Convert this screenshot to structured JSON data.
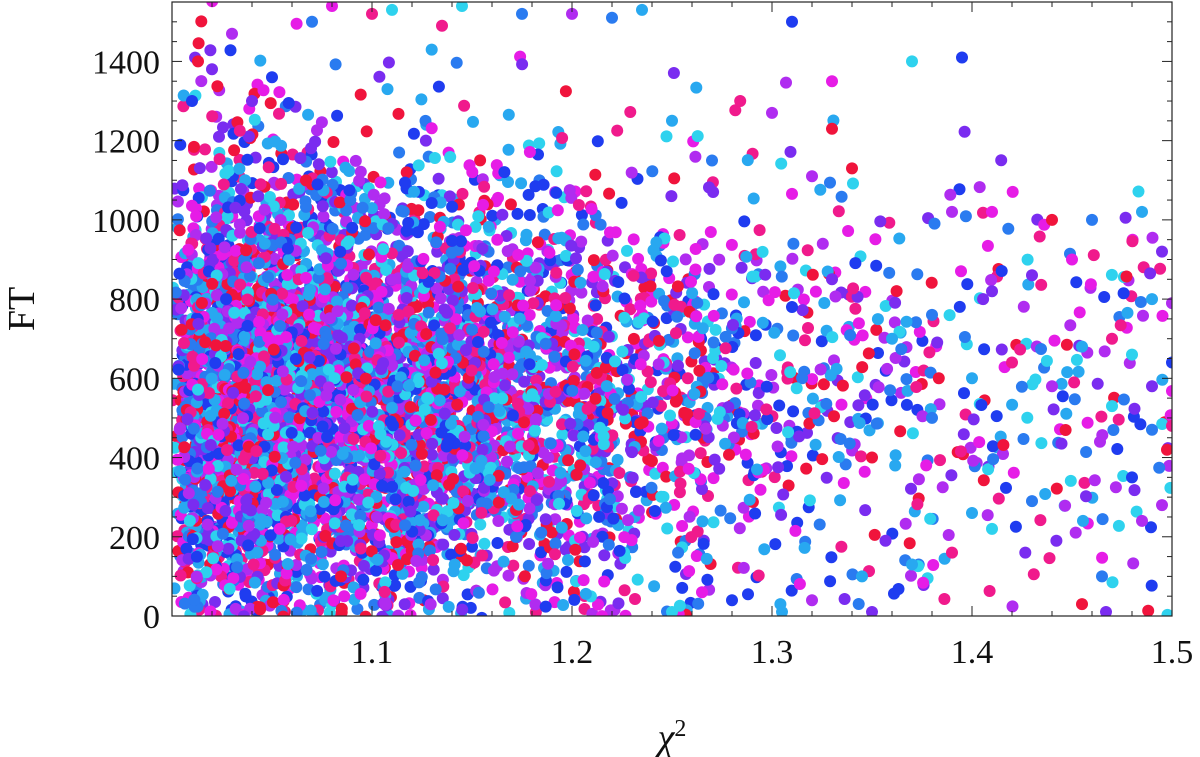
{
  "chart_data": {
    "type": "scatter",
    "xlabel": "χ",
    "xlabel_superscript": "2",
    "ylabel": "FT",
    "xlim": [
      1.0,
      1.5
    ],
    "ylim": [
      0,
      1550
    ],
    "xticks": [
      {
        "value": 1.1,
        "label": "1.1"
      },
      {
        "value": 1.2,
        "label": "1.2"
      },
      {
        "value": 1.3,
        "label": "1.3"
      },
      {
        "value": 1.4,
        "label": "1.4"
      },
      {
        "value": 1.5,
        "label": "1.5"
      }
    ],
    "yticks": [
      {
        "value": 0,
        "label": "0"
      },
      {
        "value": 200,
        "label": "200"
      },
      {
        "value": 400,
        "label": "400"
      },
      {
        "value": 600,
        "label": "600"
      },
      {
        "value": 800,
        "label": "800"
      },
      {
        "value": 1000,
        "label": "1000"
      },
      {
        "value": 1200,
        "label": "1200"
      },
      {
        "value": 1400,
        "label": "1400"
      }
    ],
    "grid": false,
    "legend": "none",
    "point_colors": [
      "#1f3cf0",
      "#2a7bf0",
      "#28a8f0",
      "#2ed2ee",
      "#7a2cf0",
      "#b02cf0",
      "#e61ce6",
      "#f01a8c",
      "#f0143c"
    ],
    "approx_point_count": 6000,
    "x_density_note": "dense near 1.0-1.25, thinning toward 1.5",
    "y_center": 550,
    "sample_points": [
      [
        1.01,
        1300
      ],
      [
        1.013,
        1400
      ],
      [
        1.02,
        1380
      ],
      [
        1.03,
        1470
      ],
      [
        1.04,
        1300
      ],
      [
        1.05,
        1360
      ],
      [
        1.07,
        1500
      ],
      [
        1.08,
        1540
      ],
      [
        1.1,
        1520
      ],
      [
        1.11,
        1530
      ],
      [
        1.135,
        1490
      ],
      [
        1.145,
        1540
      ],
      [
        1.175,
        1520
      ],
      [
        1.2,
        1520
      ],
      [
        1.22,
        1510
      ],
      [
        1.235,
        1530
      ],
      [
        1.31,
        1500
      ],
      [
        1.33,
        1350
      ],
      [
        1.37,
        1400
      ],
      [
        1.395,
        1410
      ],
      [
        1.3,
        1270
      ],
      [
        1.33,
        1230
      ],
      [
        1.25,
        1250
      ],
      [
        1.27,
        1150
      ],
      [
        1.32,
        1110
      ],
      [
        1.34,
        1130
      ],
      [
        1.39,
        1020
      ],
      [
        1.41,
        1020
      ],
      [
        1.44,
        1000
      ],
      [
        1.46,
        1000
      ],
      [
        1.485,
        1020
      ],
      [
        1.495,
        920
      ],
      [
        1.49,
        800
      ],
      [
        1.5,
        790
      ],
      [
        1.47,
        700
      ],
      [
        1.455,
        680
      ],
      [
        1.48,
        660
      ],
      [
        1.49,
        580
      ],
      [
        1.5,
        640
      ],
      [
        1.47,
        530
      ],
      [
        1.49,
        470
      ],
      [
        1.5,
        480
      ],
      [
        1.48,
        350
      ],
      [
        1.495,
        280
      ],
      [
        1.485,
        240
      ],
      [
        1.465,
        100
      ],
      [
        1.467,
        10
      ],
      [
        1.455,
        30
      ],
      [
        1.43,
        290
      ],
      [
        1.41,
        220
      ],
      [
        1.4,
        260
      ],
      [
        1.39,
        160
      ],
      [
        1.37,
        130
      ],
      [
        1.35,
        10
      ],
      [
        1.345,
        100
      ],
      [
        1.32,
        40
      ],
      [
        1.305,
        10
      ],
      [
        1.28,
        40
      ],
      [
        1.265,
        60
      ],
      [
        1.25,
        10
      ],
      [
        1.35,
        400
      ],
      [
        1.38,
        500
      ],
      [
        1.4,
        600
      ],
      [
        1.42,
        640
      ],
      [
        1.44,
        580
      ],
      [
        1.36,
        700
      ],
      [
        1.38,
        760
      ],
      [
        1.41,
        820
      ],
      [
        1.43,
        860
      ],
      [
        1.45,
        900
      ],
      [
        1.33,
        850
      ],
      [
        1.31,
        780
      ]
    ]
  }
}
